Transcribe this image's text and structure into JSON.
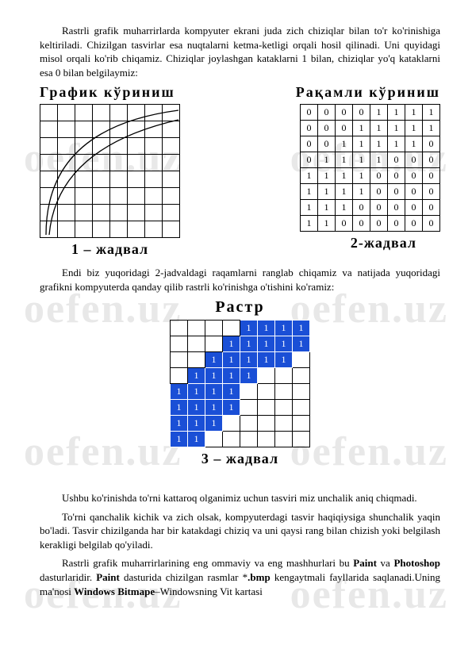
{
  "watermark_text": "oefen.uz",
  "para1": "Rastrli grafik muharrirlarda kompyuter ekrani juda zich chiziqlar bilan to'r ko'rinishiga keltiriladi. Chizilgan tasvirlar esa nuqtalarni ketma-ketligi orqali hosil qilinadi. Uni quyidagi misol orqali ko'rib chiqamiz. Chiziqlar joylashgan kataklarni 1 bilan, chiziqlar yo'q kataklarni esa 0 bilan belgilaymiz:",
  "titles": {
    "grafik": "График    кўриниш",
    "raqamli": "Рақамли  кўриниш",
    "jadval1": "1 – жадвал",
    "jadval2": "2-жадвал",
    "raster": "Растр",
    "jadval3": "3 – жадвал"
  },
  "number_grid": [
    [
      0,
      0,
      0,
      0,
      1,
      1,
      1,
      1
    ],
    [
      0,
      0,
      0,
      1,
      1,
      1,
      1,
      1
    ],
    [
      0,
      0,
      1,
      1,
      1,
      1,
      1,
      0
    ],
    [
      0,
      1,
      1,
      1,
      1,
      0,
      0,
      0
    ],
    [
      1,
      1,
      1,
      1,
      0,
      0,
      0,
      0
    ],
    [
      1,
      1,
      1,
      1,
      0,
      0,
      0,
      0
    ],
    [
      1,
      1,
      1,
      0,
      0,
      0,
      0,
      0
    ],
    [
      1,
      1,
      0,
      0,
      0,
      0,
      0,
      0
    ]
  ],
  "para2": "Endi biz yuqoridagi 2-jadvaldagi raqamlarni ranglab chiqamiz va natijada yuqoridagi grafikni kompyuterda qanday qilib rastrli ko'rinishga o'tishini ko'ramiz:",
  "raster_grid": [
    [
      0,
      0,
      0,
      0,
      1,
      1,
      1,
      1
    ],
    [
      0,
      0,
      0,
      1,
      1,
      1,
      1,
      1
    ],
    [
      0,
      0,
      1,
      1,
      1,
      1,
      1,
      0
    ],
    [
      0,
      1,
      1,
      1,
      1,
      0,
      0,
      0
    ],
    [
      1,
      1,
      1,
      1,
      0,
      0,
      0,
      0
    ],
    [
      1,
      1,
      1,
      1,
      0,
      0,
      0,
      0
    ],
    [
      1,
      1,
      1,
      0,
      0,
      0,
      0,
      0
    ],
    [
      1,
      1,
      0,
      0,
      0,
      0,
      0,
      0
    ]
  ],
  "colors": {
    "blue": "#1a4fd6",
    "white": "#ffffff",
    "black": "#000000",
    "wm": "#e8e8e8"
  },
  "para3a": "Ushbu ko'rinishda to'rni kattaroq olganimiz uchun tasviri miz unchalik aniq chiqmadi.",
  "para3b": "To'rni qanchalik kichik va zich olsak, kompyuterdagi tasvir haqiqiysiga shunchalik yaqin bo'ladi. Tasvir chizilganda har bir katakdagi chiziq va uni qaysi rang bilan chizish yoki belgilash kerakligi belgilab qo'yiladi.",
  "para4_pre": "Rastrli grafik muharrirlarining eng ommaviy va eng mashhurlari bu ",
  "para4_paint": "Paint",
  "para4_mid1": " va ",
  "para4_ps": "Photoshop",
  "para4_mid2": " dasturlaridir. ",
  "para4_paint2": "Paint",
  "para4_mid3": " dasturida chizilgan rasmlar *",
  "para4_bmp": ".bmp",
  "para4_mid4": " kengaytmali fayllarida saqlanadi.Uning ma'nosi ",
  "para4_wb": "Windows Bitmape",
  "para4_end": "–Windowsning Vit kartasi"
}
